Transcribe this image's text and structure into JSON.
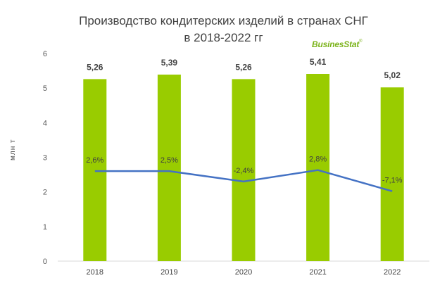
{
  "chart_data": {
    "type": "bar",
    "title_lines": [
      "Производство кондитерских изделий в странах СНГ",
      "в 2018-2022 гг"
    ],
    "ylabel": "млн т",
    "xlabel": "",
    "categories": [
      "2018",
      "2019",
      "2020",
      "2021",
      "2022"
    ],
    "ylim": [
      0,
      6
    ],
    "yticks": [
      "0",
      "1",
      "2",
      "3",
      "4",
      "5",
      "6"
    ],
    "grid": false,
    "series": [
      {
        "type": "bar",
        "values": [
          5.26,
          5.39,
          5.26,
          5.41,
          5.02
        ],
        "labels": [
          "5,26",
          "5,39",
          "5,26",
          "5,41",
          "5,02"
        ],
        "color": "#99cc00"
      },
      {
        "type": "line",
        "values_on_axis": [
          2.6,
          2.6,
          2.3,
          2.63,
          2.02
        ],
        "labels": [
          "2,6%",
          "2,5%",
          "-2,4%",
          "2,8%",
          "-7,1%"
        ],
        "color": "#4472c4"
      }
    ]
  },
  "watermark": "BusinesStat",
  "watermark_mark": "®"
}
